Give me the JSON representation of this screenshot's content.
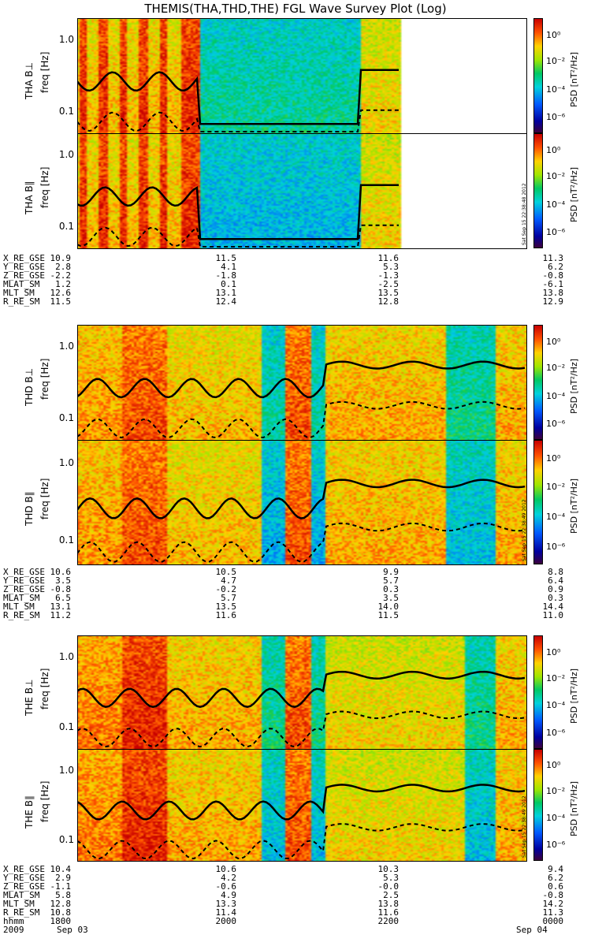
{
  "title": "THEMIS(THA,THD,THE) FGL Wave Survey Plot (Log)",
  "colorbar": {
    "label": "PSD [nT²/Hz]",
    "ticks": [
      "10⁰",
      "10⁻²",
      "10⁻⁴",
      "10⁻⁶"
    ],
    "stamps": [
      "Sat Sep 15 22:38:48 2012",
      "Sat Sep 15 22:38:49 2012",
      "Sat Sep 15 22:38:49 2012"
    ]
  },
  "freq_ticks": [
    "1.0",
    "0.1"
  ],
  "chart_data": {
    "type": "heatmap",
    "x_axis": {
      "ticks": [
        "1800",
        "2000",
        "2200",
        "0000"
      ],
      "dates": [
        "2009 Sep 03",
        "Sep 04"
      ]
    },
    "y_axis": {
      "label": "freq [Hz]",
      "scale": "log",
      "ticks": [
        1.0,
        0.1
      ]
    },
    "color_scale": {
      "label": "PSD [nT²/Hz]",
      "scale": "log",
      "range": [
        1e-06,
        10.0
      ]
    },
    "panels": [
      {
        "label": "THA B⊥",
        "probe": "tha",
        "data_end_fraction": 0.72
      },
      {
        "label": "THA B∥",
        "probe": "tha",
        "data_end_fraction": 0.72
      },
      {
        "label": "THD B⊥",
        "probe": "thd",
        "data_end_fraction": 1.0
      },
      {
        "label": "THD B∥",
        "probe": "thd",
        "data_end_fraction": 1.0
      },
      {
        "label": "THE B⊥",
        "probe": "the",
        "data_end_fraction": 1.0
      },
      {
        "label": "THE B∥",
        "probe": "the",
        "data_end_fraction": 1.0
      }
    ],
    "ephemeris": [
      {
        "probe": "THA",
        "rows": [
          {
            "name": "X_RE_GSE",
            "values": [
              "10.9",
              "11.5",
              "11.6",
              "11.3"
            ]
          },
          {
            "name": "Y_RE_GSE",
            "values": [
              "2.8",
              "4.1",
              "5.3",
              "6.2"
            ]
          },
          {
            "name": "Z_RE_GSE",
            "values": [
              "-2.2",
              "-1.8",
              "-1.3",
              "-0.8"
            ]
          },
          {
            "name": "MLAT_SM",
            "values": [
              "1.2",
              "0.1",
              "-2.5",
              "-6.1"
            ]
          },
          {
            "name": "MLT_SM",
            "values": [
              "12.6",
              "13.1",
              "13.5",
              "13.8"
            ]
          },
          {
            "name": "R_RE_SM",
            "values": [
              "11.5",
              "12.4",
              "12.8",
              "12.9"
            ]
          }
        ]
      },
      {
        "probe": "THD",
        "rows": [
          {
            "name": "X_RE_GSE",
            "values": [
              "10.6",
              "10.5",
              "9.9",
              "8.8"
            ]
          },
          {
            "name": "Y_RE_GSE",
            "values": [
              "3.5",
              "4.7",
              "5.7",
              "6.4"
            ]
          },
          {
            "name": "Z_RE_GSE",
            "values": [
              "-0.8",
              "-0.2",
              "0.3",
              "0.9"
            ]
          },
          {
            "name": "MLAT_SM",
            "values": [
              "6.5",
              "5.7",
              "3.5",
              "0.3"
            ]
          },
          {
            "name": "MLT_SM",
            "values": [
              "13.1",
              "13.5",
              "14.0",
              "14.4"
            ]
          },
          {
            "name": "R_RE_SM",
            "values": [
              "11.2",
              "11.6",
              "11.5",
              "11.0"
            ]
          }
        ]
      },
      {
        "probe": "THE",
        "rows": [
          {
            "name": "X_RE_GSE",
            "values": [
              "10.4",
              "10.6",
              "10.3",
              "9.4"
            ]
          },
          {
            "name": "Y_RE_GSE",
            "values": [
              "2.9",
              "4.2",
              "5.3",
              "6.2"
            ]
          },
          {
            "name": "Z_RE_GSE",
            "values": [
              "-1.1",
              "-0.6",
              "-0.0",
              "0.6"
            ]
          },
          {
            "name": "MLAT_SM",
            "values": [
              "5.8",
              "4.9",
              "2.5",
              "-0.8"
            ]
          },
          {
            "name": "MLT_SM",
            "values": [
              "12.8",
              "13.3",
              "13.8",
              "14.2"
            ]
          },
          {
            "name": "R_RE_SM",
            "values": [
              "10.8",
              "11.4",
              "11.6",
              "11.3"
            ]
          },
          {
            "name": "hhmm",
            "values": [
              "1800",
              "2000",
              "2200",
              "0000"
            ]
          }
        ]
      }
    ],
    "date_row": {
      "left": "2009",
      "start": "Sep 03",
      "end": "Sep 04"
    }
  }
}
